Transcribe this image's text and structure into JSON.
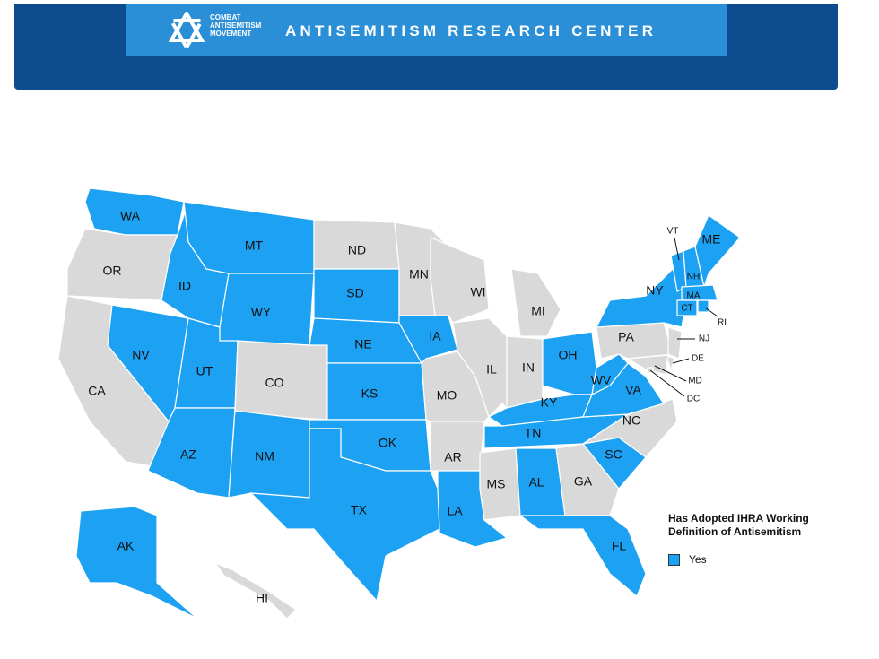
{
  "header": {
    "logo_lines": [
      "COMBAT",
      "ANTISEMITISM",
      "MOVEMENT"
    ],
    "title": "ANTISEMITISM RESEARCH CENTER"
  },
  "map": {
    "colors": {
      "adopted": "#1da1f2",
      "not_adopted": "#d9d9d9"
    },
    "states": [
      {
        "label": "WA",
        "adopted": true
      },
      {
        "label": "OR",
        "adopted": false
      },
      {
        "label": "CA",
        "adopted": false
      },
      {
        "label": "NV",
        "adopted": true
      },
      {
        "label": "ID",
        "adopted": true
      },
      {
        "label": "MT",
        "adopted": true
      },
      {
        "label": "WY",
        "adopted": true
      },
      {
        "label": "UT",
        "adopted": true
      },
      {
        "label": "CO",
        "adopted": false
      },
      {
        "label": "AZ",
        "adopted": true
      },
      {
        "label": "NM",
        "adopted": true
      },
      {
        "label": "ND",
        "adopted": false
      },
      {
        "label": "SD",
        "adopted": true
      },
      {
        "label": "NE",
        "adopted": true
      },
      {
        "label": "KS",
        "adopted": true
      },
      {
        "label": "OK",
        "adopted": true
      },
      {
        "label": "TX",
        "adopted": true
      },
      {
        "label": "MN",
        "adopted": false
      },
      {
        "label": "IA",
        "adopted": true
      },
      {
        "label": "MO",
        "adopted": false
      },
      {
        "label": "AR",
        "adopted": false
      },
      {
        "label": "LA",
        "adopted": true
      },
      {
        "label": "WI",
        "adopted": false
      },
      {
        "label": "IL",
        "adopted": false
      },
      {
        "label": "MI",
        "adopted": false
      },
      {
        "label": "IN",
        "adopted": false
      },
      {
        "label": "OH",
        "adopted": true
      },
      {
        "label": "KY",
        "adopted": true
      },
      {
        "label": "TN",
        "adopted": true
      },
      {
        "label": "MS",
        "adopted": false
      },
      {
        "label": "AL",
        "adopted": true
      },
      {
        "label": "GA",
        "adopted": false
      },
      {
        "label": "FL",
        "adopted": true
      },
      {
        "label": "SC",
        "adopted": true
      },
      {
        "label": "NC",
        "adopted": false
      },
      {
        "label": "VA",
        "adopted": true
      },
      {
        "label": "WV",
        "adopted": true
      },
      {
        "label": "PA",
        "adopted": false
      },
      {
        "label": "NY",
        "adopted": true
      },
      {
        "label": "VT",
        "adopted": true
      },
      {
        "label": "NH",
        "adopted": true
      },
      {
        "label": "ME",
        "adopted": true
      },
      {
        "label": "MA",
        "adopted": true
      },
      {
        "label": "CT",
        "adopted": true
      },
      {
        "label": "RI",
        "adopted": true
      },
      {
        "label": "NJ",
        "adopted": false
      },
      {
        "label": "DE",
        "adopted": false
      },
      {
        "label": "MD",
        "adopted": false
      },
      {
        "label": "DC",
        "adopted": false
      },
      {
        "label": "AK",
        "adopted": true
      },
      {
        "label": "HI",
        "adopted": false
      }
    ]
  },
  "legend": {
    "title": "Has Adopted IHRA Working Definition of Antisemitism",
    "items": [
      {
        "label": "Yes",
        "color": "#1da1f2"
      }
    ]
  }
}
